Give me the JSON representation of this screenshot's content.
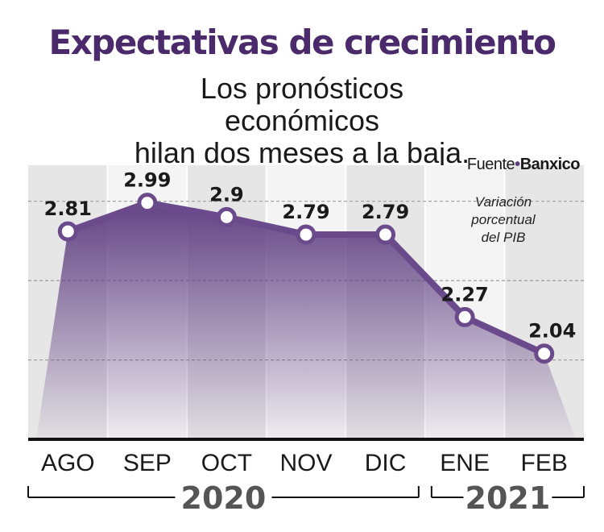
{
  "header": {
    "title": "Expectativas de crecimiento",
    "subtitle_line1": "Los pronósticos económicos",
    "subtitle_line2": "hilan dos meses a la baja."
  },
  "source": {
    "prefix": "Fuente",
    "separator": "•",
    "name": "Banxico"
  },
  "unit_label": {
    "line1": "Variación",
    "line2": "porcentual",
    "line3": "del PIB"
  },
  "colors": {
    "line": "#6b4a8c",
    "marker_fill": "#ffffff",
    "area_top": "#5b3a7f",
    "title": "#4b2a6b",
    "year": "#555555"
  },
  "chart_data": {
    "type": "line",
    "title": "Expectativas de crecimiento",
    "subtitle": "Los pronósticos económicos hilan dos meses a la baja.",
    "categories": [
      "AGO",
      "SEP",
      "OCT",
      "NOV",
      "DIC",
      "ENE",
      "FEB"
    ],
    "values": [
      2.81,
      2.99,
      2.9,
      2.79,
      2.79,
      2.27,
      2.04
    ],
    "labels": [
      "2.81",
      "2.99",
      "2.9",
      "2.79",
      "2.79",
      "2.27",
      "2.04"
    ],
    "ylabel": "Variación porcentual del PIB",
    "xlabel": "",
    "ylim": [
      1.5,
      3.1
    ],
    "grid": true,
    "year_groups": [
      {
        "label": "2020",
        "categories": [
          "AGO",
          "SEP",
          "OCT",
          "NOV",
          "DIC"
        ]
      },
      {
        "label": "2021",
        "categories": [
          "ENE",
          "FEB"
        ]
      }
    ]
  }
}
